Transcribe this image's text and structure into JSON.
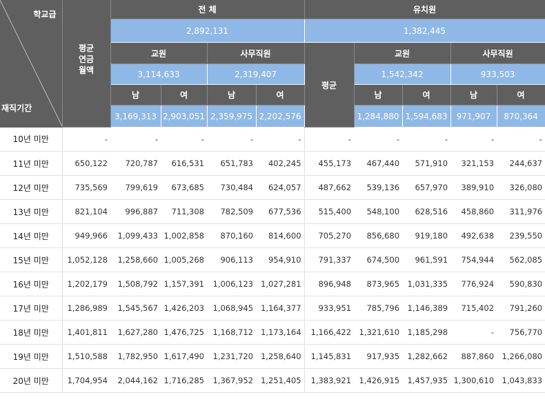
{
  "corner": {
    "top_label": "학교급",
    "bottom_label": "재직기간"
  },
  "col_avg_label": [
    "평균",
    "연금",
    "월액"
  ],
  "total_section": {
    "title": "전 체",
    "overall": "2,892,131",
    "teacher_label": "교원",
    "staff_label": "사무직원",
    "teacher_total": "3,114,633",
    "staff_total": "2,319,407",
    "male": "남",
    "female": "여",
    "teacher_male": "3,169,313",
    "teacher_female": "2,903,051",
    "staff_male": "2,359,975",
    "staff_female": "2,202,576"
  },
  "kinder_section": {
    "title": "유치원",
    "overall": "1,382,445",
    "avg_label": "평균",
    "teacher_label": "교원",
    "staff_label": "사무직원",
    "teacher_total": "1,542,342",
    "staff_total": "933,503",
    "male": "남",
    "female": "여",
    "teacher_male": "1,284,880",
    "teacher_female": "1,594,683",
    "staff_male": "971,907",
    "staff_female": "870,364"
  },
  "rows": [
    [
      "10년 미만",
      "-",
      "-",
      "-",
      "-",
      "-",
      "-",
      "-",
      "-",
      "-",
      "-"
    ],
    [
      "11년 미만",
      "650,122",
      "720,787",
      "616,531",
      "651,783",
      "402,245",
      "455,173",
      "467,440",
      "571,910",
      "321,153",
      "244,637"
    ],
    [
      "12년 미만",
      "735,569",
      "799,619",
      "673,685",
      "730,484",
      "624,057",
      "487,662",
      "539,136",
      "657,970",
      "389,910",
      "326,080"
    ],
    [
      "13년 미만",
      "821,104",
      "996,887",
      "711,308",
      "782,509",
      "677,536",
      "515,400",
      "548,100",
      "628,516",
      "458,860",
      "311,976"
    ],
    [
      "14년 미만",
      "949,966",
      "1,099,433",
      "1,002,858",
      "870,160",
      "814,600",
      "705,270",
      "856,680",
      "919,180",
      "492,638",
      "239,550"
    ],
    [
      "15년 미만",
      "1,052,128",
      "1,258,660",
      "1,005,268",
      "906,113",
      "954,910",
      "791,337",
      "674,500",
      "961,591",
      "754,944",
      "562,085"
    ],
    [
      "16년 미만",
      "1,202,179",
      "1,508,792",
      "1,157,391",
      "1,006,123",
      "1,027,281",
      "896,948",
      "873,965",
      "1,031,335",
      "776,924",
      "590,830"
    ],
    [
      "17년 미만",
      "1,286,989",
      "1,545,567",
      "1,426,203",
      "1,068,945",
      "1,164,377",
      "933,951",
      "785,796",
      "1,146,389",
      "715,402",
      "791,260"
    ],
    [
      "18년 미만",
      "1,401,811",
      "1,627,280",
      "1,476,725",
      "1,168,712",
      "1,173,164",
      "1,166,422",
      "1,321,610",
      "1,185,298",
      "-",
      "756,770"
    ],
    [
      "19년 미만",
      "1,510,588",
      "1,782,950",
      "1,617,490",
      "1,231,720",
      "1,258,640",
      "1,145,831",
      "917,935",
      "1,282,662",
      "887,860",
      "1,266,080"
    ],
    [
      "20년 미만",
      "1,704,954",
      "2,044,162",
      "1,716,285",
      "1,367,952",
      "1,251,405",
      "1,383,921",
      "1,426,915",
      "1,457,935",
      "1,300,610",
      "1,043,833"
    ]
  ]
}
